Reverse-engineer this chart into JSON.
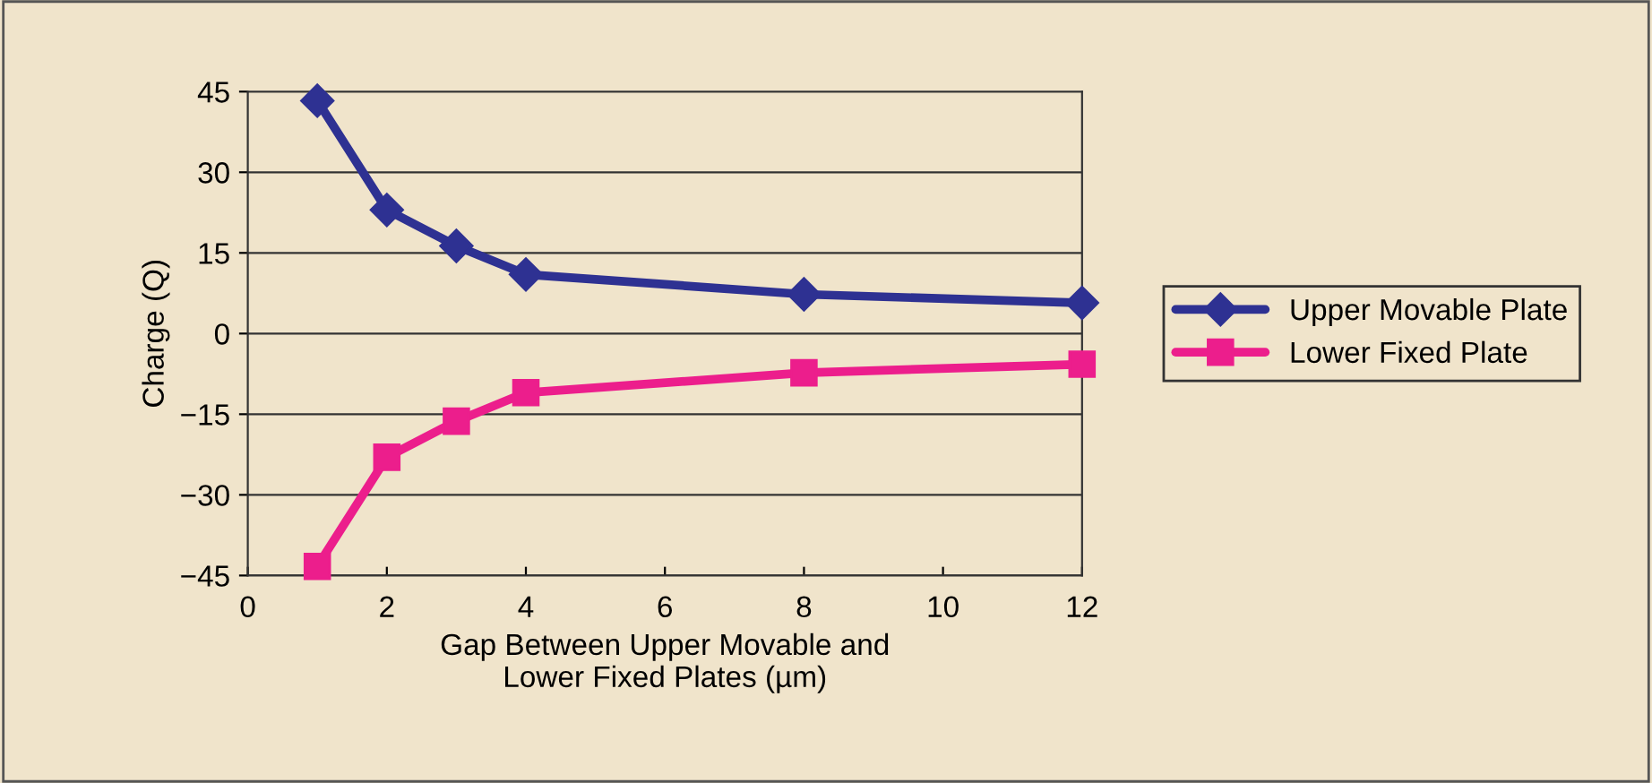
{
  "chart_data": {
    "type": "line",
    "xlabel": "Gap Between Upper Movable and\nLower Fixed Plates (µm)",
    "ylabel": "Charge (Q)",
    "x": [
      1,
      2,
      3,
      4,
      8,
      12
    ],
    "series": [
      {
        "name": "Upper Movable Plate",
        "color": "#2e3192",
        "marker": "diamond",
        "values": [
          43.3,
          23,
          16.3,
          11,
          7.3,
          5.7
        ]
      },
      {
        "name": "Lower Fixed Plate",
        "color": "#ec1e8c",
        "marker": "square",
        "values": [
          -43.3,
          -23,
          -16.3,
          -11,
          -7.3,
          -5.7
        ]
      }
    ],
    "xlim": [
      0,
      12
    ],
    "xticks": [
      0,
      2,
      4,
      6,
      8,
      10,
      12
    ],
    "ylim": [
      -45,
      45
    ],
    "yticks": [
      -45,
      -30,
      -15,
      0,
      15,
      30,
      45
    ],
    "grid": "y",
    "legend": "right",
    "line_style": "solid"
  }
}
